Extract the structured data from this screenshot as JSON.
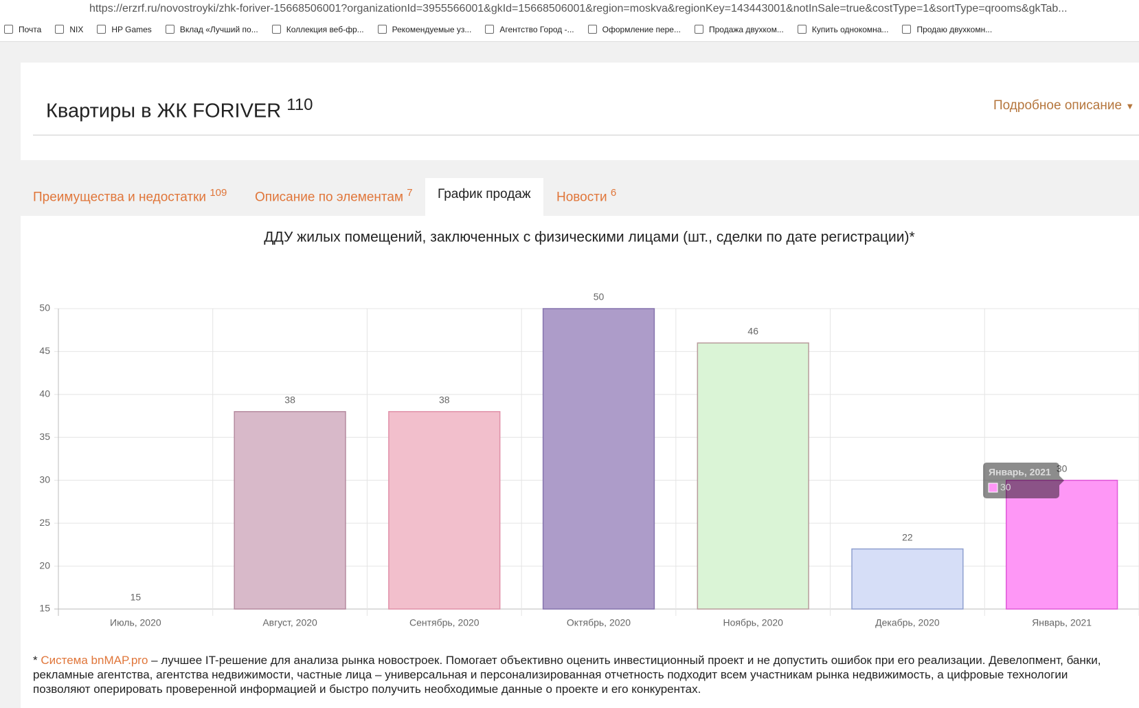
{
  "browser": {
    "url": "https://erzrf.ru/novostroyki/zhk-foriver-15668506001?organizationId=3955566001&gkId=15668506001&region=moskva&regionKey=143443001&notInSale=true&costType=1&sortType=qrooms&gkTab...",
    "bookmarks": [
      "Почта",
      "NIX",
      "HP Games",
      "Вклад «Лучший по...",
      "Коллекция веб-фр...",
      "Рекомендуемые уз...",
      "Агентство Город -...",
      "Оформление пере...",
      "Продажа двухком...",
      "Купить однокомна...",
      "Продаю двухкомн..."
    ]
  },
  "header": {
    "title": "Квартиры в ЖК FORIVER",
    "count": "110",
    "more": "Подробное описание"
  },
  "tabs": [
    {
      "label": "Преимущества и недостатки",
      "count": "109"
    },
    {
      "label": "Описание по элементам",
      "count": "7"
    },
    {
      "label": "График продаж"
    },
    {
      "label": "Новости",
      "count": "6"
    }
  ],
  "chart_data": {
    "type": "bar",
    "title": "ДДУ жилых помещений, заключенных с физическими лицами (шт., сделки по дате регистрации)*",
    "categories": [
      "Июль, 2020",
      "Август, 2020",
      "Сентябрь, 2020",
      "Октябрь, 2020",
      "Ноябрь, 2020",
      "Декабрь, 2020",
      "Январь, 2021"
    ],
    "values": [
      15,
      38,
      38,
      50,
      46,
      22,
      30
    ],
    "colors": [
      "#cfe3f5",
      "#d8b9c9",
      "#f2bfcc",
      "#ad9cc9",
      "#daf4d6",
      "#d6def7",
      "#fe97f6"
    ],
    "border_colors": [
      "#8fb0d0",
      "#b58a9f",
      "#e090a8",
      "#8574ad",
      "#b89c9c",
      "#8f9fcf",
      "#e05ad8"
    ],
    "ylim": [
      15,
      50
    ],
    "yticks": [
      15,
      20,
      25,
      30,
      35,
      40,
      45,
      50
    ],
    "grid": true
  },
  "tooltip": {
    "title": "Январь, 2021",
    "value": "30"
  },
  "footnote": {
    "star": "*",
    "link": "Система bnMAP.pro",
    "text": "– лучшее IT-решение для анализа рынка новостроек. Помогает объективно оценить инвестиционный проект и не допустить ошибок при его реализации. Девелопмент, банки, рекламные агентства, агентства недвижимости, частные лица – универсальная и персонализированная отчетность подходит всем участникам рынка недвижимость, а цифровые технологии позволяют оперировать проверенной информацией и быстро получить необходимые данные о проекте и его конкурентах."
  }
}
